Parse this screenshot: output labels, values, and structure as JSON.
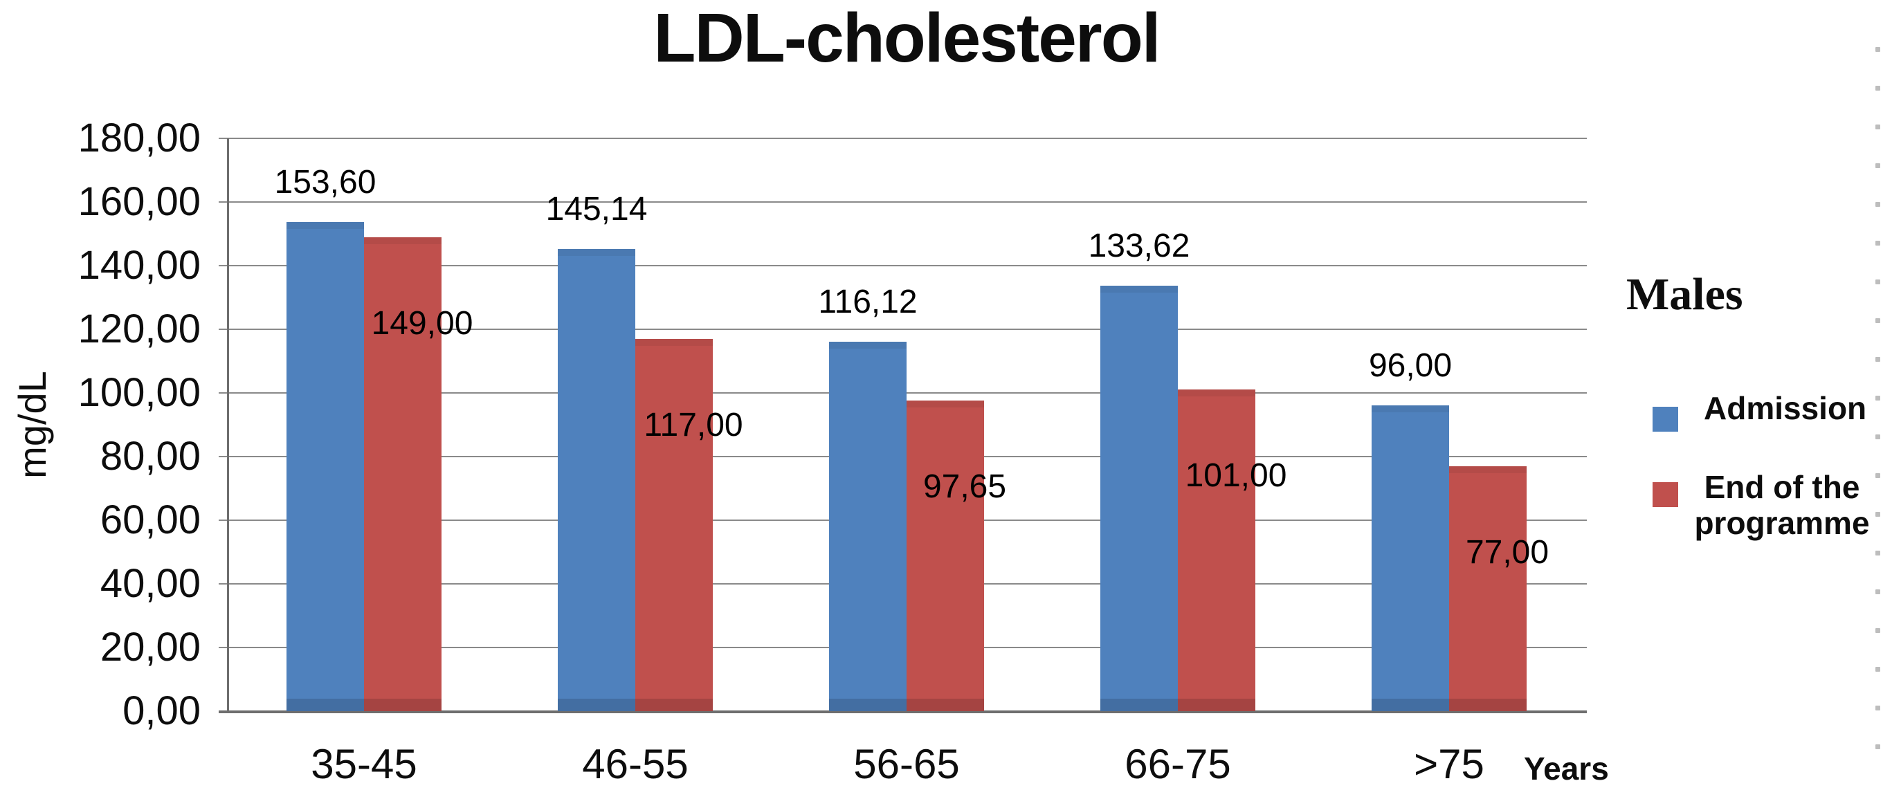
{
  "title": "LDL-cholesterol",
  "legend": {
    "group_title": "Males",
    "items": [
      {
        "label": "Admission",
        "color": "#4F81BD"
      },
      {
        "label": "End of the programme",
        "color": "#C0504D"
      }
    ]
  },
  "axes": {
    "y_unit_label": "mg/dL",
    "x_unit_label": "Years",
    "y_ticks": [
      "180,00",
      "160,00",
      "140,00",
      "120,00",
      "100,00",
      "80,00",
      "60,00",
      "40,00",
      "20,00",
      "0,00"
    ],
    "y_min": 0,
    "y_max": 180,
    "y_step": 20
  },
  "chart_data": {
    "type": "bar",
    "title": "LDL-cholesterol",
    "xlabel": "Years",
    "ylabel": "mg/dL",
    "ylim": [
      0,
      180
    ],
    "grid": true,
    "legend_position": "right",
    "legend_title": "Males",
    "categories": [
      "35-45",
      "46-55",
      "56-65",
      "66-75",
      ">75"
    ],
    "series": [
      {
        "name": "Admission",
        "color": "#4F81BD",
        "values": [
          153.6,
          145.14,
          116.12,
          133.62,
          96.0
        ],
        "labels": [
          "153,60",
          "145,14",
          "116,12",
          "133,62",
          "96,00"
        ],
        "label_position": "above-bar"
      },
      {
        "name": "End of the programme",
        "color": "#C0504D",
        "values": [
          149.0,
          117.0,
          97.65,
          101.0,
          77.0
        ],
        "labels": [
          "149,00",
          "117,00",
          "97,65",
          "101,00",
          "77,00"
        ],
        "label_position": "inside-bar"
      }
    ]
  },
  "colors": {
    "admission_bar": "#4F81BD",
    "end_bar": "#C0504D",
    "gridline": "#8a8a8a",
    "axis_line": "#6e6e6e",
    "text": "#0d0d0d",
    "page_dots": "#bdbdbd"
  }
}
